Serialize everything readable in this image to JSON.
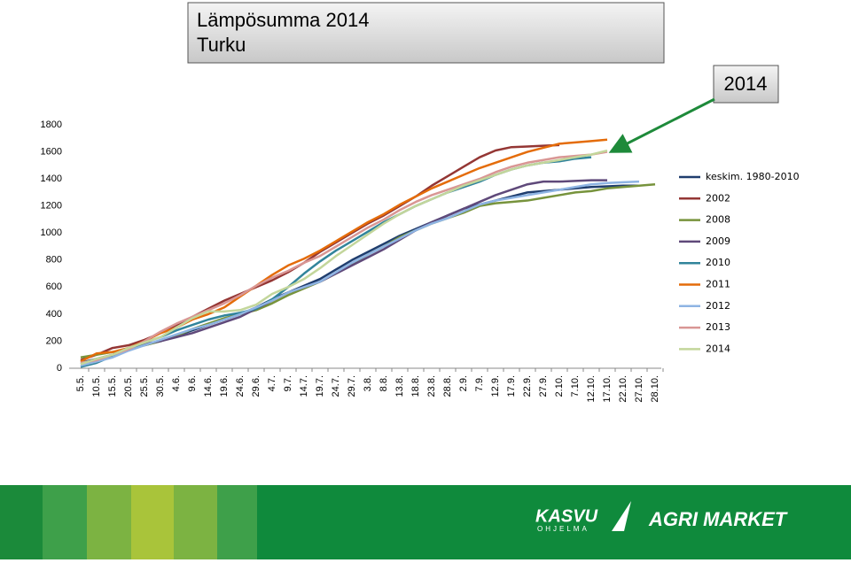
{
  "chart_data": {
    "type": "line",
    "title": "Lämpösumma 2014",
    "subtitle": "Turku",
    "annotation": "2014",
    "categories": [
      "5.5.",
      "10.5.",
      "15.5.",
      "20.5.",
      "25.5.",
      "30.5.",
      "4.6.",
      "9.6.",
      "14.6.",
      "19.6.",
      "24.6.",
      "29.6.",
      "4.7.",
      "9.7.",
      "14.7.",
      "19.7.",
      "24.7.",
      "29.7.",
      "3.8.",
      "8.8.",
      "13.8.",
      "18.8.",
      "23.8.",
      "28.8.",
      "2.9.",
      "7.9.",
      "12.9.",
      "17.9.",
      "22.9.",
      "27.9.",
      "2.10.",
      "7.10.",
      "12.10.",
      "17.10.",
      "22.10.",
      "27.10.",
      "28.10."
    ],
    "ylim": [
      0,
      1800
    ],
    "yticks": [
      0,
      200,
      400,
      600,
      800,
      1000,
      1200,
      1400,
      1600,
      1800
    ],
    "legend": "right",
    "series": [
      {
        "name": "keskim. 1980-2010",
        "color": "#1f3d6e",
        "values": [
          40,
          70,
          100,
          140,
          170,
          200,
          240,
          280,
          320,
          360,
          400,
          450,
          510,
          560,
          610,
          660,
          730,
          800,
          860,
          920,
          980,
          1030,
          1080,
          1130,
          1180,
          1210,
          1240,
          1270,
          1300,
          1310,
          1320,
          1330,
          1340,
          1345,
          1350,
          1350,
          null
        ]
      },
      {
        "name": "2002",
        "color": "#943634",
        "values": [
          60,
          100,
          150,
          170,
          210,
          260,
          320,
          380,
          440,
          500,
          550,
          600,
          650,
          710,
          780,
          860,
          930,
          1000,
          1070,
          1130,
          1200,
          1270,
          1350,
          1420,
          1490,
          1560,
          1610,
          1635,
          1640,
          1645,
          1650,
          null,
          null,
          null,
          null,
          null,
          null
        ]
      },
      {
        "name": "2008",
        "color": "#77933c",
        "values": [
          80,
          100,
          120,
          140,
          170,
          200,
          240,
          290,
          330,
          370,
          400,
          430,
          480,
          540,
          590,
          640,
          700,
          770,
          840,
          900,
          970,
          1020,
          1070,
          1110,
          1150,
          1200,
          1220,
          1230,
          1240,
          1260,
          1280,
          1300,
          1310,
          1330,
          1340,
          1350,
          1360
        ]
      },
      {
        "name": "2009",
        "color": "#5f497a",
        "values": [
          30,
          60,
          100,
          150,
          180,
          200,
          230,
          260,
          300,
          340,
          380,
          440,
          500,
          560,
          600,
          640,
          700,
          760,
          820,
          880,
          950,
          1020,
          1080,
          1130,
          1180,
          1230,
          1280,
          1320,
          1360,
          1380,
          1380,
          1385,
          1390,
          1390,
          null,
          null,
          null
        ]
      },
      {
        "name": "2010",
        "color": "#31849b",
        "values": [
          10,
          40,
          90,
          140,
          190,
          230,
          280,
          320,
          360,
          390,
          410,
          440,
          510,
          600,
          700,
          790,
          870,
          940,
          1010,
          1080,
          1140,
          1200,
          1250,
          1300,
          1340,
          1380,
          1430,
          1470,
          1500,
          1520,
          1530,
          1550,
          1560,
          null,
          null,
          null,
          null
        ]
      },
      {
        "name": "2011",
        "color": "#e46c0a",
        "values": [
          50,
          110,
          120,
          150,
          200,
          260,
          300,
          360,
          400,
          450,
          530,
          610,
          690,
          760,
          810,
          870,
          940,
          1010,
          1080,
          1140,
          1210,
          1270,
          1330,
          1380,
          1430,
          1480,
          1520,
          1560,
          1600,
          1630,
          1660,
          1670,
          1680,
          1690,
          null,
          null,
          null
        ]
      },
      {
        "name": "2012",
        "color": "#8eb4e3",
        "values": [
          20,
          50,
          80,
          130,
          170,
          210,
          250,
          290,
          320,
          360,
          400,
          450,
          500,
          560,
          600,
          640,
          710,
          780,
          840,
          900,
          960,
          1020,
          1070,
          1110,
          1160,
          1210,
          1240,
          1260,
          1280,
          1300,
          1320,
          1340,
          1360,
          1370,
          1375,
          1380,
          null
        ]
      },
      {
        "name": "2013",
        "color": "#d99694",
        "values": [
          40,
          60,
          100,
          140,
          200,
          270,
          330,
          380,
          430,
          480,
          540,
          610,
          670,
          720,
          780,
          830,
          900,
          970,
          1040,
          1100,
          1170,
          1230,
          1280,
          1320,
          1360,
          1400,
          1450,
          1490,
          1520,
          1540,
          1560,
          1570,
          1580,
          1600,
          null,
          null,
          null
        ]
      },
      {
        "name": "2014",
        "color": "#c3d69b",
        "values": [
          30,
          70,
          100,
          150,
          190,
          230,
          300,
          370,
          420,
          420,
          430,
          470,
          550,
          600,
          660,
          740,
          830,
          910,
          990,
          1070,
          1140,
          1200,
          1250,
          1300,
          1350,
          1390,
          1430,
          1470,
          1500,
          1520,
          1540,
          1560,
          1580,
          1610,
          null,
          null,
          null
        ]
      }
    ]
  },
  "footer": {
    "logo_left": "KASVU",
    "logo_left_sub": "OHJELMA",
    "logo_right": "AGRI MARKET"
  }
}
